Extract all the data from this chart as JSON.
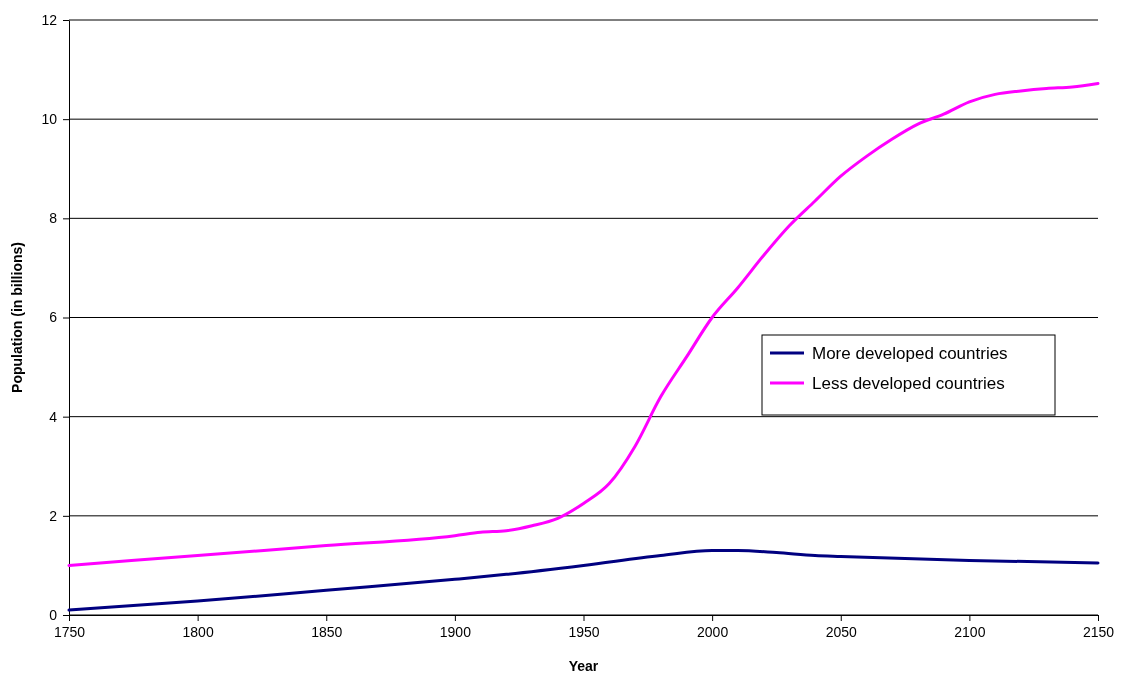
{
  "chart_data": {
    "type": "line",
    "xlabel": "Year",
    "ylabel": "Population (in billions)",
    "xlim": [
      1750,
      2150
    ],
    "xticks": [
      1750,
      1800,
      1850,
      1900,
      1950,
      2000,
      2050,
      2100,
      2150
    ],
    "ylim": [
      0,
      12
    ],
    "yticks": [
      0,
      2,
      4,
      6,
      8,
      10,
      12
    ],
    "grid": "y",
    "legend": "right",
    "marker": "none",
    "line_style": "solid",
    "series": [
      {
        "name": "More developed countries",
        "color": "#000080",
        "x": [
          1750,
          1800,
          1850,
          1900,
          1920,
          1950,
          1980,
          2000,
          2010,
          2025,
          2040,
          2050,
          2100,
          2150
        ],
        "values": [
          0.1,
          0.28,
          0.5,
          0.72,
          0.82,
          1.0,
          1.2,
          1.3,
          1.3,
          1.26,
          1.2,
          1.18,
          1.1,
          1.05
        ]
      },
      {
        "name": "Less developed countries",
        "color": "#ff00ff",
        "x": [
          1750,
          1800,
          1850,
          1900,
          1910,
          1920,
          1930,
          1940,
          1950,
          1960,
          1970,
          1980,
          1990,
          2000,
          2010,
          2020,
          2030,
          2040,
          2050,
          2060,
          2070,
          2080,
          2090,
          2100,
          2110,
          2120,
          2130,
          2140,
          2150
        ],
        "values": [
          1.0,
          1.2,
          1.4,
          1.6,
          1.67,
          1.7,
          1.8,
          1.95,
          2.25,
          2.65,
          3.4,
          4.4,
          5.2,
          6.0,
          6.6,
          7.25,
          7.85,
          8.35,
          8.85,
          9.25,
          9.6,
          9.9,
          10.1,
          10.35,
          10.5,
          10.57,
          10.62,
          10.65,
          10.72
        ]
      }
    ]
  }
}
